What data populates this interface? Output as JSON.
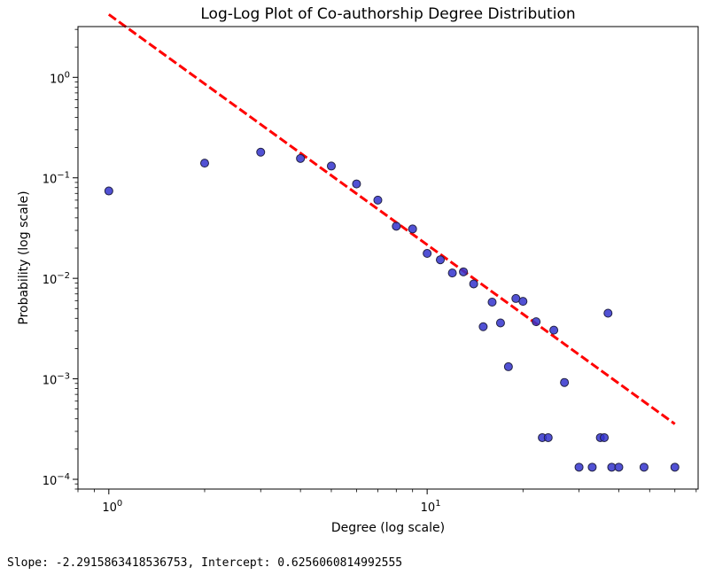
{
  "chart_data": {
    "type": "scatter",
    "title": "Log-Log Plot of Co-authorship Degree Distribution",
    "xlabel": "Degree (log scale)",
    "ylabel": "Probability (log scale)",
    "xscale": "log",
    "yscale": "log",
    "xlim": [
      0.8,
      71
    ],
    "ylim": [
      8e-05,
      3.2
    ],
    "xticks": [
      {
        "value": 1,
        "mantissa": "10",
        "exponent": "0"
      },
      {
        "value": 10,
        "mantissa": "10",
        "exponent": "1"
      }
    ],
    "yticks": [
      {
        "value": 0.0001,
        "mantissa": "10",
        "exponent": "−4"
      },
      {
        "value": 0.001,
        "mantissa": "10",
        "exponent": "−3"
      },
      {
        "value": 0.01,
        "mantissa": "10",
        "exponent": "−2"
      },
      {
        "value": 0.1,
        "mantissa": "10",
        "exponent": "−1"
      },
      {
        "value": 1,
        "mantissa": "10",
        "exponent": "0"
      }
    ],
    "grid": false,
    "points": {
      "color": "#3333cc",
      "x": [
        1,
        2,
        3,
        4,
        5,
        6,
        7,
        8,
        9,
        10,
        11,
        12,
        13,
        14,
        15,
        16,
        17,
        18,
        19,
        20,
        22,
        23,
        24,
        25,
        27,
        30,
        33,
        35,
        36,
        37,
        38,
        40,
        48,
        60
      ],
      "y": [
        0.074,
        0.14,
        0.18,
        0.156,
        0.131,
        0.087,
        0.06,
        0.033,
        0.031,
        0.0177,
        0.0153,
        0.0113,
        0.0116,
        0.0088,
        0.0033,
        0.0058,
        0.0036,
        0.00132,
        0.0063,
        0.0059,
        0.0037,
        0.00026,
        0.00026,
        0.00305,
        0.00092,
        0.000132,
        0.000132,
        0.00026,
        0.00026,
        0.0045,
        0.000132,
        0.000132,
        0.000132,
        0.000132
      ]
    },
    "fit_line": {
      "color": "#ff0000",
      "style": "dashed",
      "slope": -2.2915863418536753,
      "intercept": 0.6256060814992555,
      "x_range": [
        1,
        60
      ]
    }
  },
  "output": {
    "text": "Slope: -2.2915863418536753, Intercept: 0.6256060814992555"
  }
}
